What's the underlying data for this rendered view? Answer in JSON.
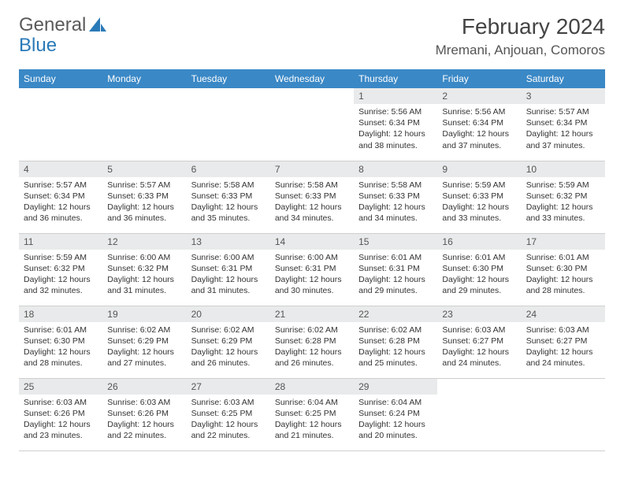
{
  "logo": {
    "word1": "General",
    "word2": "Blue"
  },
  "title": "February 2024",
  "location": "Mremani, Anjouan, Comoros",
  "colors": {
    "header_bg": "#3a88c6",
    "header_text": "#ffffff",
    "daynum_bg": "#e9eaeb",
    "border": "#cfcfcf",
    "logo_gray": "#5a5a5a",
    "logo_blue": "#2a7ab8",
    "body_text": "#333333"
  },
  "day_headers": [
    "Sunday",
    "Monday",
    "Tuesday",
    "Wednesday",
    "Thursday",
    "Friday",
    "Saturday"
  ],
  "labels": {
    "sunrise": "Sunrise:",
    "sunset": "Sunset:",
    "daylight": "Daylight:"
  },
  "weeks": [
    [
      null,
      null,
      null,
      null,
      {
        "n": "1",
        "sr": "5:56 AM",
        "ss": "6:34 PM",
        "dl": "12 hours and 38 minutes."
      },
      {
        "n": "2",
        "sr": "5:56 AM",
        "ss": "6:34 PM",
        "dl": "12 hours and 37 minutes."
      },
      {
        "n": "3",
        "sr": "5:57 AM",
        "ss": "6:34 PM",
        "dl": "12 hours and 37 minutes."
      }
    ],
    [
      {
        "n": "4",
        "sr": "5:57 AM",
        "ss": "6:34 PM",
        "dl": "12 hours and 36 minutes."
      },
      {
        "n": "5",
        "sr": "5:57 AM",
        "ss": "6:33 PM",
        "dl": "12 hours and 36 minutes."
      },
      {
        "n": "6",
        "sr": "5:58 AM",
        "ss": "6:33 PM",
        "dl": "12 hours and 35 minutes."
      },
      {
        "n": "7",
        "sr": "5:58 AM",
        "ss": "6:33 PM",
        "dl": "12 hours and 34 minutes."
      },
      {
        "n": "8",
        "sr": "5:58 AM",
        "ss": "6:33 PM",
        "dl": "12 hours and 34 minutes."
      },
      {
        "n": "9",
        "sr": "5:59 AM",
        "ss": "6:33 PM",
        "dl": "12 hours and 33 minutes."
      },
      {
        "n": "10",
        "sr": "5:59 AM",
        "ss": "6:32 PM",
        "dl": "12 hours and 33 minutes."
      }
    ],
    [
      {
        "n": "11",
        "sr": "5:59 AM",
        "ss": "6:32 PM",
        "dl": "12 hours and 32 minutes."
      },
      {
        "n": "12",
        "sr": "6:00 AM",
        "ss": "6:32 PM",
        "dl": "12 hours and 31 minutes."
      },
      {
        "n": "13",
        "sr": "6:00 AM",
        "ss": "6:31 PM",
        "dl": "12 hours and 31 minutes."
      },
      {
        "n": "14",
        "sr": "6:00 AM",
        "ss": "6:31 PM",
        "dl": "12 hours and 30 minutes."
      },
      {
        "n": "15",
        "sr": "6:01 AM",
        "ss": "6:31 PM",
        "dl": "12 hours and 29 minutes."
      },
      {
        "n": "16",
        "sr": "6:01 AM",
        "ss": "6:30 PM",
        "dl": "12 hours and 29 minutes."
      },
      {
        "n": "17",
        "sr": "6:01 AM",
        "ss": "6:30 PM",
        "dl": "12 hours and 28 minutes."
      }
    ],
    [
      {
        "n": "18",
        "sr": "6:01 AM",
        "ss": "6:30 PM",
        "dl": "12 hours and 28 minutes."
      },
      {
        "n": "19",
        "sr": "6:02 AM",
        "ss": "6:29 PM",
        "dl": "12 hours and 27 minutes."
      },
      {
        "n": "20",
        "sr": "6:02 AM",
        "ss": "6:29 PM",
        "dl": "12 hours and 26 minutes."
      },
      {
        "n": "21",
        "sr": "6:02 AM",
        "ss": "6:28 PM",
        "dl": "12 hours and 26 minutes."
      },
      {
        "n": "22",
        "sr": "6:02 AM",
        "ss": "6:28 PM",
        "dl": "12 hours and 25 minutes."
      },
      {
        "n": "23",
        "sr": "6:03 AM",
        "ss": "6:27 PM",
        "dl": "12 hours and 24 minutes."
      },
      {
        "n": "24",
        "sr": "6:03 AM",
        "ss": "6:27 PM",
        "dl": "12 hours and 24 minutes."
      }
    ],
    [
      {
        "n": "25",
        "sr": "6:03 AM",
        "ss": "6:26 PM",
        "dl": "12 hours and 23 minutes."
      },
      {
        "n": "26",
        "sr": "6:03 AM",
        "ss": "6:26 PM",
        "dl": "12 hours and 22 minutes."
      },
      {
        "n": "27",
        "sr": "6:03 AM",
        "ss": "6:25 PM",
        "dl": "12 hours and 22 minutes."
      },
      {
        "n": "28",
        "sr": "6:04 AM",
        "ss": "6:25 PM",
        "dl": "12 hours and 21 minutes."
      },
      {
        "n": "29",
        "sr": "6:04 AM",
        "ss": "6:24 PM",
        "dl": "12 hours and 20 minutes."
      },
      null,
      null
    ]
  ]
}
